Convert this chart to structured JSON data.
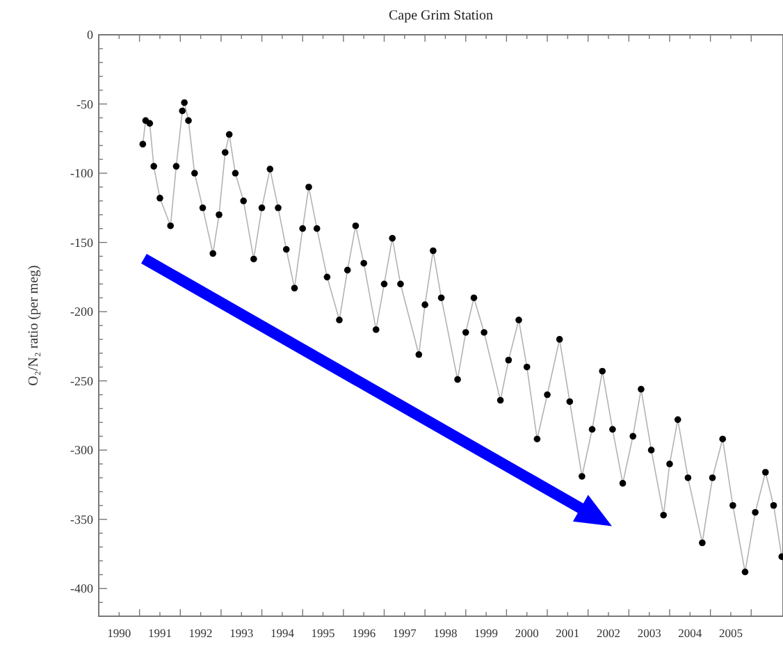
{
  "chart_data": {
    "type": "line",
    "title": "Cape Grim Station",
    "ylabel": "O₂/N₂ ratio (per meg)",
    "marker": "circle",
    "line_style": "solid",
    "grid": false,
    "xlim": [
      1990,
      2006.78
    ],
    "ylim": [
      -420,
      0
    ],
    "xticks": [
      {
        "value": 1990.5,
        "label": "1990"
      },
      {
        "value": 1991.5,
        "label": "1991"
      },
      {
        "value": 1992.5,
        "label": "1992"
      },
      {
        "value": 1993.5,
        "label": "1993"
      },
      {
        "value": 1994.5,
        "label": "1994"
      },
      {
        "value": 1995.5,
        "label": "1995"
      },
      {
        "value": 1996.5,
        "label": "1996"
      },
      {
        "value": 1997.5,
        "label": "1997"
      },
      {
        "value": 1998.5,
        "label": "1998"
      },
      {
        "value": 1999.5,
        "label": "1999"
      },
      {
        "value": 2000.5,
        "label": "2000"
      },
      {
        "value": 2001.5,
        "label": "2001"
      },
      {
        "value": 2002.5,
        "label": "2002"
      },
      {
        "value": 2003.5,
        "label": "2003"
      },
      {
        "value": 2004.5,
        "label": "2004"
      },
      {
        "value": 2005.5,
        "label": "2005"
      },
      {
        "value": 1991,
        "label": null
      },
      {
        "value": 1992,
        "label": null
      },
      {
        "value": 1993,
        "label": null
      },
      {
        "value": 1994,
        "label": null
      },
      {
        "value": 1995,
        "label": null
      },
      {
        "value": 1996,
        "label": null
      },
      {
        "value": 1997,
        "label": null
      },
      {
        "value": 1998,
        "label": null
      },
      {
        "value": 1999,
        "label": null
      },
      {
        "value": 2000,
        "label": null
      },
      {
        "value": 2001,
        "label": null
      },
      {
        "value": 2002,
        "label": null
      },
      {
        "value": 2003,
        "label": null
      },
      {
        "value": 2004,
        "label": null
      },
      {
        "value": 2005,
        "label": null
      },
      {
        "value": 2006,
        "label": null
      }
    ],
    "yticks": [
      -400,
      -350,
      -300,
      -250,
      -200,
      -150,
      -100,
      -50,
      0
    ],
    "series": [
      {
        "color": "#000000",
        "x": [
          1991.08,
          1991.15,
          1991.25,
          1991.35,
          1991.5,
          1991.76,
          1991.9,
          1992.05,
          1992.1,
          1992.2,
          1992.35,
          1992.55,
          1992.8,
          1992.95,
          1993.1,
          1993.2,
          1993.35,
          1993.55,
          1993.8,
          1994.0,
          1994.2,
          1994.4,
          1994.6,
          1994.8,
          1995.0,
          1995.15,
          1995.35,
          1995.6,
          1995.9,
          1996.1,
          1996.3,
          1996.5,
          1996.8,
          1997.0,
          1997.2,
          1997.4,
          1997.85,
          1998.0,
          1998.2,
          1998.4,
          1998.8,
          1999.0,
          1999.2,
          1999.45,
          1999.85,
          2000.05,
          2000.3,
          2000.5,
          2000.75,
          2001.0,
          2001.3,
          2001.55,
          2001.85,
          2002.1,
          2002.35,
          2002.6,
          2002.85,
          2003.1,
          2003.3,
          2003.55,
          2003.85,
          2004.0,
          2004.2,
          2004.45,
          2004.8,
          2005.05,
          2005.3,
          2005.55,
          2005.85,
          2006.1,
          2006.35,
          2006.55,
          2006.75
        ],
        "values": [
          -79,
          -62,
          -64,
          -95,
          -118,
          -138,
          -95,
          -55,
          -49,
          -62,
          -100,
          -125,
          -158,
          -130,
          -85,
          -72,
          -100,
          -120,
          -162,
          -125,
          -97,
          -125,
          -155,
          -183,
          -140,
          -110,
          -140,
          -175,
          -206,
          -170,
          -138,
          -165,
          -213,
          -180,
          -147,
          -180,
          -231,
          -195,
          -156,
          -190,
          -249,
          -215,
          -190,
          -215,
          -264,
          -235,
          -206,
          -240,
          -292,
          -260,
          -220,
          -265,
          -319,
          -285,
          -243,
          -285,
          -324,
          -290,
          -256,
          -300,
          -347,
          -310,
          -278,
          -320,
          -367,
          -320,
          -292,
          -340,
          -388,
          -345,
          -316,
          -340,
          -377
        ]
      }
    ]
  }
}
